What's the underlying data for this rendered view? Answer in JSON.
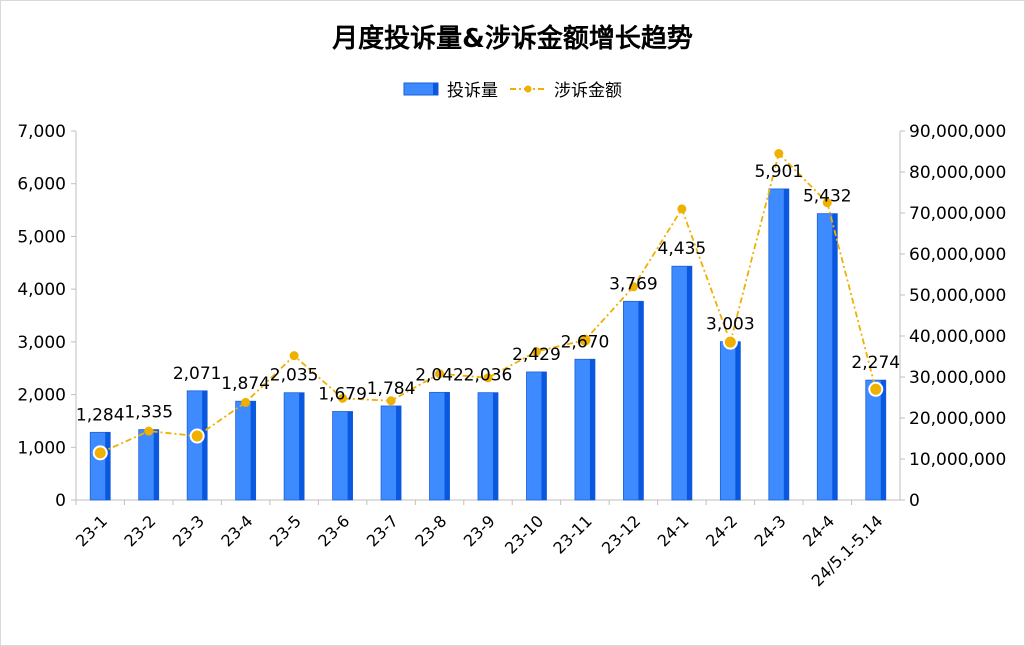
{
  "chart_data": {
    "type": "bar",
    "title": "月度投诉量&涉诉金额增长趋势",
    "categories": [
      "23-1",
      "23-2",
      "23-3",
      "23-4",
      "23-5",
      "23-6",
      "23-7",
      "23-8",
      "23-9",
      "23-10",
      "23-11",
      "23-12",
      "24-1",
      "24-2",
      "24-3",
      "24-4",
      "24/5.1-5.14"
    ],
    "series": [
      {
        "name": "投诉量",
        "type": "bar",
        "axis": "left",
        "color": "#3d8bff",
        "values": [
          1284,
          1335,
          2071,
          1874,
          2035,
          1679,
          1784,
          2042,
          2036,
          2429,
          2670,
          3769,
          4435,
          3003,
          5901,
          5432,
          2274
        ],
        "labels": [
          "1,284",
          "1,335",
          "2,071",
          "1,874",
          "2,035",
          "1,679",
          "1,784",
          "2,042",
          "2,036",
          "2,429",
          "2,670",
          "3,769",
          "4,435",
          "3,003",
          "5,901",
          "5,432",
          "2,274"
        ]
      },
      {
        "name": "涉诉金额",
        "type": "line",
        "axis": "right",
        "color": "#f0b000",
        "style": "dash-dot",
        "values": [
          11500000,
          16800000,
          15600000,
          23800000,
          35200000,
          24800000,
          24200000,
          30800000,
          29800000,
          36200000,
          39000000,
          52000000,
          71000000,
          38500000,
          84500000,
          72500000,
          27000000
        ]
      }
    ],
    "y_left": {
      "ylim": [
        0,
        7000
      ],
      "ticks": [
        "0",
        "1,000",
        "2,000",
        "3,000",
        "4,000",
        "5,000",
        "6,000",
        "7,000"
      ]
    },
    "y_right": {
      "ylim": [
        0,
        90000000
      ],
      "ticks": [
        "0",
        "10,000,000",
        "20,000,000",
        "30,000,000",
        "40,000,000",
        "50,000,000",
        "60,000,000",
        "70,000,000",
        "80,000,000",
        "90,000,000"
      ]
    },
    "legend_position": "top",
    "grid": false
  }
}
